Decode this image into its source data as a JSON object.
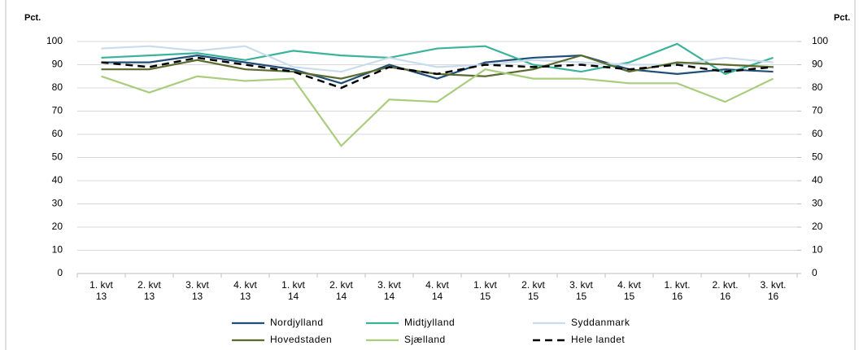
{
  "chart_data": {
    "type": "line",
    "y_axis_label": "Pct.",
    "y2_axis_label": "Pct.",
    "categories": [
      "1. kvt 13",
      "2. kvt 13",
      "3. kvt 13",
      "4. kvt 13",
      "1. kvt 14",
      "2. kvt 14",
      "3. kvt 14",
      "4. kvt 14",
      "1. kvt 15",
      "2. kvt 15",
      "3. kvt 15",
      "4. kvt 15",
      "1. kvt. 16",
      "2. kvt. 16",
      "3. kvt. 16"
    ],
    "series": [
      {
        "name": "Nordjylland",
        "color": "#1f4e79",
        "values": [
          91,
          91,
          94,
          91,
          88,
          82,
          90,
          84,
          91,
          93,
          94,
          88,
          86,
          88,
          87
        ]
      },
      {
        "name": "Midtjylland",
        "color": "#3bb39a",
        "values": [
          93,
          94,
          95,
          92,
          96,
          94,
          93,
          97,
          98,
          90,
          87,
          91,
          99,
          86,
          93
        ]
      },
      {
        "name": "Syddanmark",
        "color": "#c9dcec",
        "values": [
          97,
          98,
          96,
          98,
          89,
          87,
          93,
          89,
          90,
          92,
          91,
          90,
          90,
          93,
          91
        ]
      },
      {
        "name": "Hovedstaden",
        "color": "#5a6b2e",
        "values": [
          88,
          88,
          92,
          88,
          87,
          84,
          89,
          86,
          85,
          88,
          94,
          87,
          91,
          90,
          89
        ]
      },
      {
        "name": "Sjælland",
        "color": "#a9cd7d",
        "values": [
          85,
          78,
          85,
          83,
          84,
          55,
          75,
          74,
          88,
          84,
          84,
          82,
          82,
          74,
          84
        ]
      },
      {
        "name": "Hele landet",
        "color": "#000000",
        "dashed": true,
        "values": [
          91,
          89,
          93,
          90,
          87,
          80,
          89,
          86,
          90,
          89,
          90,
          88,
          90,
          87,
          89
        ]
      }
    ],
    "ylim": [
      0,
      100
    ],
    "yticks": [
      0,
      10,
      20,
      30,
      40,
      50,
      60,
      70,
      80,
      90,
      100
    ],
    "y2lim": [
      0,
      100
    ],
    "y2ticks": [
      0,
      10,
      20,
      30,
      40,
      50,
      60,
      70,
      80,
      90,
      100
    ],
    "grid": true
  }
}
